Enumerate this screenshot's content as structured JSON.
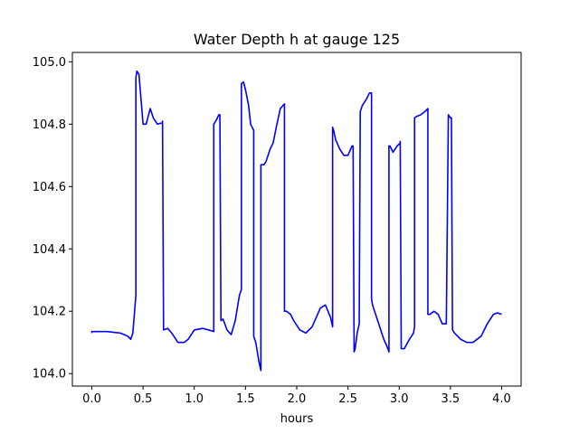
{
  "chart_data": {
    "type": "line",
    "title": "Water Depth h at gauge 125",
    "xlabel": "hours",
    "ylabel": "",
    "xlim": [
      -0.19,
      4.19
    ],
    "ylim": [
      103.96,
      105.03
    ],
    "xticks": [
      {
        "value": 0.0,
        "label": "0.0"
      },
      {
        "value": 0.5,
        "label": "0.5"
      },
      {
        "value": 1.0,
        "label": "1.0"
      },
      {
        "value": 1.5,
        "label": "1.5"
      },
      {
        "value": 2.0,
        "label": "2.0"
      },
      {
        "value": 2.5,
        "label": "2.5"
      },
      {
        "value": 3.0,
        "label": "3.0"
      },
      {
        "value": 3.5,
        "label": "3.5"
      },
      {
        "value": 4.0,
        "label": "4.0"
      }
    ],
    "yticks": [
      {
        "value": 104.0,
        "label": "104.0"
      },
      {
        "value": 104.2,
        "label": "104.2"
      },
      {
        "value": 104.4,
        "label": "104.4"
      },
      {
        "value": 104.6,
        "label": "104.6"
      },
      {
        "value": 104.8,
        "label": "104.8"
      },
      {
        "value": 105.0,
        "label": "105.0"
      }
    ],
    "grid": false,
    "line_color": "#0000ff",
    "series": [
      {
        "x": [
          0.0,
          0.0,
          0.15,
          0.28,
          0.35,
          0.38,
          0.4,
          0.43,
          0.43,
          0.44,
          0.46,
          0.48,
          0.5,
          0.53,
          0.57,
          0.6,
          0.64,
          0.69,
          0.69,
          0.7,
          0.74,
          0.78,
          0.84,
          0.9,
          0.94,
          1.0,
          1.08,
          1.14,
          1.19,
          1.19,
          1.21,
          1.24,
          1.25,
          1.26,
          1.28,
          1.32,
          1.36,
          1.4,
          1.44,
          1.46,
          1.46,
          1.48,
          1.5,
          1.53,
          1.55,
          1.58,
          1.58,
          1.6,
          1.63,
          1.65,
          1.65,
          1.66,
          1.68,
          1.7,
          1.74,
          1.77,
          1.8,
          1.84,
          1.88,
          1.88,
          1.9,
          1.94,
          1.97,
          2.03,
          2.09,
          2.15,
          2.23,
          2.28,
          2.33,
          2.35,
          2.35,
          2.36,
          2.38,
          2.42,
          2.46,
          2.5,
          2.54,
          2.55,
          2.56,
          2.57,
          2.59,
          2.61,
          2.61,
          2.62,
          2.64,
          2.68,
          2.71,
          2.73,
          2.73,
          2.74,
          2.79,
          2.85,
          2.89,
          2.9,
          2.9,
          2.91,
          2.94,
          2.98,
          3.01,
          3.01,
          3.02,
          3.05,
          3.1,
          3.14,
          3.15,
          3.15,
          3.17,
          3.21,
          3.25,
          3.28,
          3.28,
          3.3,
          3.34,
          3.38,
          3.42,
          3.46,
          3.48,
          3.48,
          3.5,
          3.51,
          3.52,
          3.54,
          3.6,
          3.66,
          3.72,
          3.8,
          3.86,
          3.92,
          3.96,
          4.0
        ],
        "y": [
          104.13,
          104.135,
          104.135,
          104.13,
          104.12,
          104.11,
          104.13,
          104.25,
          104.95,
          104.97,
          104.96,
          104.88,
          104.8,
          104.8,
          104.85,
          104.82,
          104.8,
          104.805,
          104.81,
          104.14,
          104.145,
          104.13,
          104.1,
          104.1,
          104.11,
          104.14,
          104.145,
          104.14,
          104.135,
          104.8,
          104.81,
          104.83,
          104.83,
          104.17,
          104.175,
          104.14,
          104.125,
          104.17,
          104.25,
          104.27,
          104.93,
          104.935,
          104.91,
          104.86,
          104.8,
          104.78,
          104.12,
          104.1,
          104.04,
          104.01,
          104.67,
          104.67,
          104.67,
          104.68,
          104.72,
          104.74,
          104.79,
          104.85,
          104.865,
          104.2,
          104.2,
          104.19,
          104.17,
          104.14,
          104.13,
          104.15,
          104.21,
          104.22,
          104.18,
          104.15,
          104.79,
          104.78,
          104.75,
          104.72,
          104.7,
          104.7,
          104.73,
          104.73,
          104.07,
          104.08,
          104.13,
          104.16,
          104.18,
          104.84,
          104.86,
          104.88,
          104.9,
          104.9,
          104.24,
          104.22,
          104.17,
          104.11,
          104.08,
          104.07,
          104.73,
          104.73,
          104.71,
          104.73,
          104.74,
          104.745,
          104.08,
          104.08,
          104.11,
          104.13,
          104.15,
          104.82,
          104.825,
          104.83,
          104.84,
          104.85,
          104.19,
          104.19,
          104.2,
          104.19,
          104.16,
          104.16,
          104.83,
          104.83,
          104.82,
          104.82,
          104.14,
          104.13,
          104.11,
          104.1,
          104.1,
          104.12,
          104.16,
          104.19,
          104.195,
          104.19
        ]
      }
    ]
  }
}
